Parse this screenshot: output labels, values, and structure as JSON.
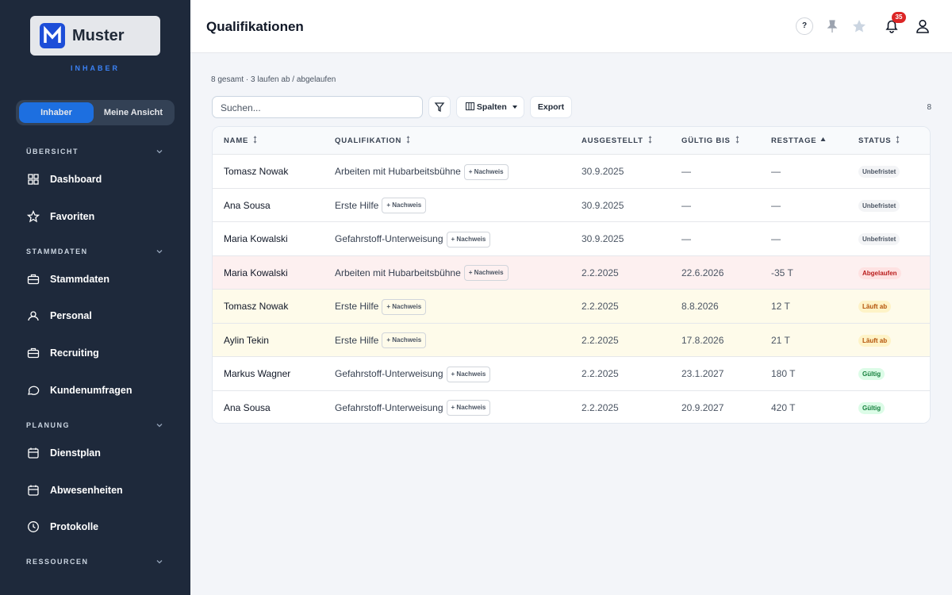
{
  "sidebar": {
    "logo": "Muster",
    "role": "INHABER",
    "toggle": [
      "Inhaber",
      "Meine Ansicht"
    ],
    "sections": [
      {
        "title": "ÜBERSICHT",
        "items": [
          "Dashboard",
          "Favoriten"
        ]
      },
      {
        "title": "STAMMDATEN",
        "items": [
          "Stammdaten",
          "Personal",
          "Recruiting",
          "Kundenumfragen"
        ]
      },
      {
        "title": "PLANUNG",
        "items": [
          "Dienstplan",
          "Abwesenheiten",
          "Protokolle"
        ]
      },
      {
        "title": "RESSOURCEN",
        "items": []
      }
    ]
  },
  "header": {
    "title": "Qualifikationen",
    "help": "?",
    "notifications": 35
  },
  "summary": "8 gesamt · 3 laufen ab / abgelaufen",
  "toolbar": {
    "search_placeholder": "Suchen...",
    "columns": "Spalten",
    "export": "Export",
    "count": 8
  },
  "table": {
    "columns": [
      {
        "label": "NAME",
        "sort": "none"
      },
      {
        "label": "QUALIFIKATION",
        "sort": "none"
      },
      {
        "label": "AUSGESTELLT",
        "sort": "none"
      },
      {
        "label": "GÜLTIG BIS",
        "sort": "none"
      },
      {
        "label": "RESTTAGE",
        "sort": "asc"
      },
      {
        "label": "STATUS",
        "sort": "none"
      }
    ],
    "proof_label": "+ Nachweis",
    "rows": [
      {
        "name": "Tomasz Nowak",
        "qualification": "Arbeiten mit Hubarbeitsbühne",
        "issued": "30.9.2025",
        "valid_until": "—",
        "remaining": "—",
        "status": "Unbefristet",
        "status_color": "#4b5563",
        "status_bg": "#f3f4f6",
        "row_bg": "#ffffff"
      },
      {
        "name": "Ana Sousa",
        "qualification": "Erste Hilfe",
        "issued": "30.9.2025",
        "valid_until": "—",
        "remaining": "—",
        "status": "Unbefristet",
        "status_color": "#4b5563",
        "status_bg": "#f3f4f6",
        "row_bg": "#ffffff"
      },
      {
        "name": "Maria Kowalski",
        "qualification": "Gefahrstoff-Unterweisung",
        "issued": "30.9.2025",
        "valid_until": "—",
        "remaining": "—",
        "status": "Unbefristet",
        "status_color": "#4b5563",
        "status_bg": "#f3f4f6",
        "row_bg": "#ffffff"
      },
      {
        "name": "Maria Kowalski",
        "qualification": "Arbeiten mit Hubarbeitsbühne",
        "issued": "2.2.2025",
        "valid_until": "22.6.2026",
        "remaining": "-35 T",
        "status": "Abgelaufen",
        "status_color": "#b91c1c",
        "status_bg": "#fee2e2",
        "row_bg": "#fdf0f0"
      },
      {
        "name": "Tomasz Nowak",
        "qualification": "Erste Hilfe",
        "issued": "2.2.2025",
        "valid_until": "8.8.2026",
        "remaining": "12 T",
        "status": "Läuft ab",
        "status_color": "#b45309",
        "status_bg": "#fef3c7",
        "row_bg": "#fefbea"
      },
      {
        "name": "Aylin Tekin",
        "qualification": "Erste Hilfe",
        "issued": "2.2.2025",
        "valid_until": "17.8.2026",
        "remaining": "21 T",
        "status": "Läuft ab",
        "status_color": "#b45309",
        "status_bg": "#fef3c7",
        "row_bg": "#fefbea"
      },
      {
        "name": "Markus Wagner",
        "qualification": "Gefahrstoff-Unterweisung",
        "issued": "2.2.2025",
        "valid_until": "23.1.2027",
        "remaining": "180 T",
        "status": "Gültig",
        "status_color": "#15803d",
        "status_bg": "#dcfce7",
        "row_bg": "#ffffff"
      },
      {
        "name": "Ana Sousa",
        "qualification": "Gefahrstoff-Unterweisung",
        "issued": "2.2.2025",
        "valid_until": "20.9.2027",
        "remaining": "420 T",
        "status": "Gültig",
        "status_color": "#15803d",
        "status_bg": "#dcfce7",
        "row_bg": "#ffffff"
      }
    ]
  }
}
